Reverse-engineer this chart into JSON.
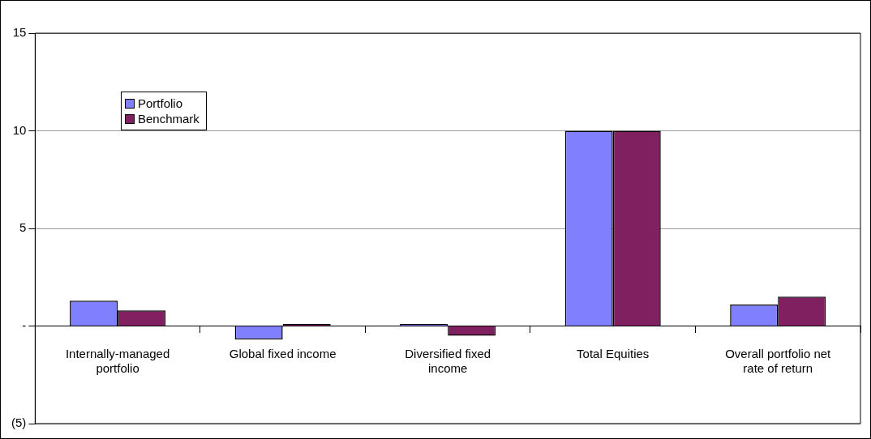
{
  "chart_data": {
    "type": "bar",
    "categories": [
      "Internally-managed portfolio",
      "Global fixed income",
      "Diversified fixed income",
      "Total Equities",
      "Overall portfolio net rate of return"
    ],
    "series": [
      {
        "name": "Portfolio",
        "color": "#8080ff",
        "values": [
          1.3,
          -0.7,
          0.1,
          10,
          1.1
        ]
      },
      {
        "name": "Benchmark",
        "color": "#802060",
        "values": [
          0.8,
          0.1,
          -0.5,
          10,
          1.5
        ]
      }
    ],
    "ylim": [
      -5,
      15
    ],
    "yticks": [
      {
        "value": -5,
        "label": "(5)"
      },
      {
        "value": 0,
        "label": "-"
      },
      5,
      10,
      15
    ],
    "grid": "y",
    "legend": "top left"
  }
}
